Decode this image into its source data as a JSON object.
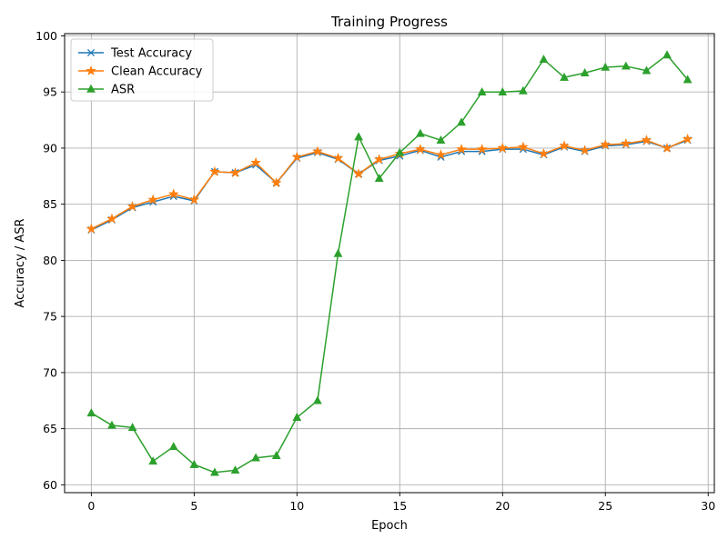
{
  "chart_data": {
    "type": "line",
    "title": "Training Progress",
    "xlabel": "Epoch",
    "ylabel": "Accuracy / ASR",
    "xlim": [
      -1.3,
      30.3
    ],
    "ylim": [
      59.3,
      100.2
    ],
    "xticks": [
      0,
      5,
      10,
      15,
      20,
      25,
      30
    ],
    "yticks": [
      60,
      65,
      70,
      75,
      80,
      85,
      90,
      95,
      100
    ],
    "grid": true,
    "legend_position": "upper-left",
    "x": [
      0,
      1,
      2,
      3,
      4,
      5,
      6,
      7,
      8,
      9,
      10,
      11,
      12,
      13,
      14,
      15,
      16,
      17,
      18,
      19,
      20,
      21,
      22,
      23,
      24,
      25,
      26,
      27,
      28,
      29
    ],
    "series": [
      {
        "name": "Test Accuracy",
        "color": "#1f77b4",
        "marker": "x",
        "values": [
          82.7,
          83.6,
          84.7,
          85.2,
          85.7,
          85.3,
          87.9,
          87.8,
          88.5,
          86.9,
          89.1,
          89.6,
          89.0,
          87.7,
          88.9,
          89.3,
          89.8,
          89.2,
          89.7,
          89.7,
          89.9,
          89.9,
          89.4,
          90.1,
          89.7,
          90.2,
          90.3,
          90.6,
          90.0,
          90.7
        ]
      },
      {
        "name": "Clean Accuracy",
        "color": "#ff7f0e",
        "marker": "star",
        "values": [
          82.8,
          83.7,
          84.8,
          85.4,
          85.9,
          85.4,
          87.9,
          87.8,
          88.7,
          86.9,
          89.2,
          89.7,
          89.1,
          87.7,
          89.0,
          89.5,
          89.9,
          89.4,
          89.9,
          89.9,
          90.0,
          90.1,
          89.5,
          90.2,
          89.8,
          90.3,
          90.4,
          90.7,
          90.0,
          90.8
        ]
      },
      {
        "name": "ASR",
        "color": "#2ca02c",
        "marker": "triangle",
        "values": [
          66.4,
          65.3,
          65.1,
          62.1,
          63.4,
          61.8,
          61.1,
          61.3,
          62.4,
          62.6,
          66.0,
          67.5,
          80.6,
          91.0,
          87.3,
          89.6,
          91.3,
          90.7,
          92.3,
          95.0,
          95.0,
          95.1,
          97.9,
          96.3,
          96.7,
          97.2,
          97.3,
          96.9,
          98.3,
          96.1
        ]
      }
    ]
  }
}
